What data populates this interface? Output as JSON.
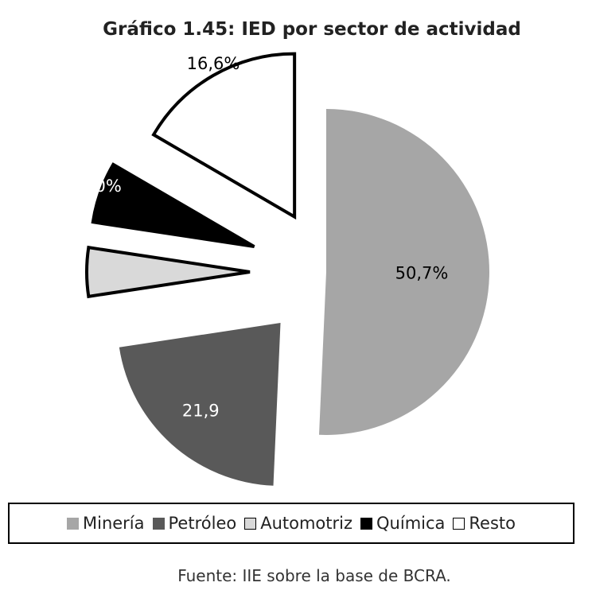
{
  "chart_data": {
    "type": "pie",
    "title": "Gráfico 1.45: IED por sector de actividad",
    "slices": [
      {
        "name": "Minería",
        "value": 50.7,
        "label": "50,7%",
        "color": "#a6a6a6"
      },
      {
        "name": "Petróleo",
        "value": 21.9,
        "label": "21,9",
        "color": "#595959"
      },
      {
        "name": "Automotriz",
        "value": 4.8,
        "label": "",
        "color": "#d9d9d9"
      },
      {
        "name": "Química",
        "value": 6.0,
        "label": "6,0%",
        "color": "#000000"
      },
      {
        "name": "Resto",
        "value": 16.6,
        "label": "16,6%",
        "color": "#ffffff"
      }
    ],
    "legend_position": "bottom",
    "source": "Fuente: IIE sobre la base de BCRA."
  }
}
